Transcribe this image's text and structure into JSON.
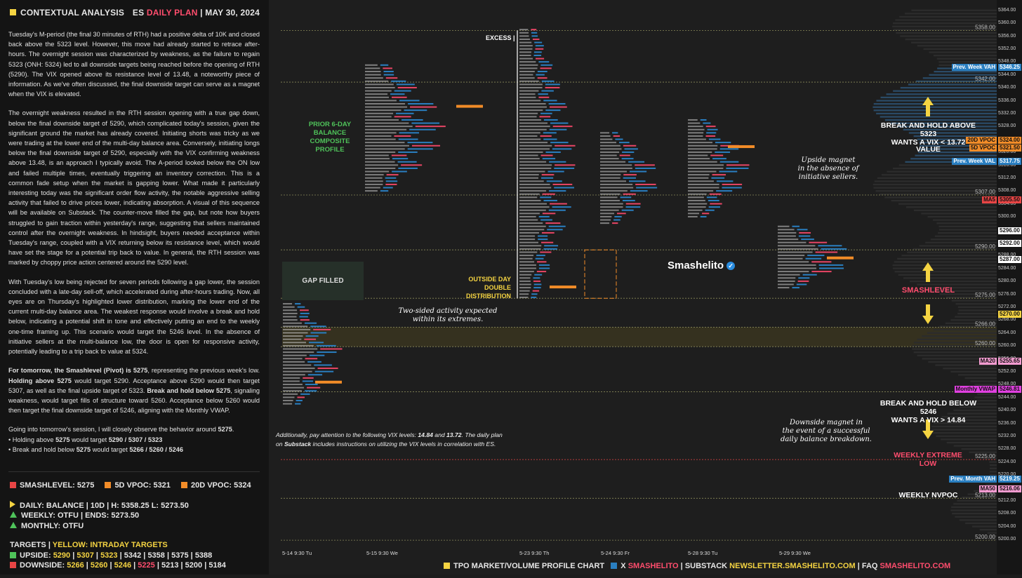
{
  "header": {
    "title": "CONTEXTUAL ANALYSIS",
    "symbol": "ES",
    "plan": "DAILY PLAN",
    "date": "MAY 30, 2024"
  },
  "paragraphs": [
    "Tuesday's M-period (the final 30 minutes of RTH) had a positive delta of 10K and closed back above the 5323 level. However, this move had already started to retrace after-hours. The overnight session was characterized by weakness, as the failure to regain 5323 (ONH: 5324) led to all downside targets being reached before the opening of RTH (5290). The VIX opened above its resistance level of 13.48, a noteworthy piece of information. As we've often discussed, the final downside target can serve as a magnet when the VIX is elevated.",
    "The overnight weakness resulted in the RTH session opening with a true gap down, below the final downside target of 5290, which complicated today's session, given the significant ground the market has already covered. Initiating shorts was tricky as we were trading at the lower end of the multi-day balance area. Conversely, initiating longs below the final downside target of 5290, especially with the VIX confirming weakness above 13.48, is an approach I typically avoid. The A-period looked below the ON low and failed multiple times, eventually triggering an inventory correction. This is a common fade setup when the market is gapping lower. What made it particularly interesting today was the significant order flow activity, the notable aggressive selling activity that failed to drive prices lower, indicating absorption. A visual of this sequence will be available on Substack. The counter-move filled the gap, but note how buyers struggled to gain traction within yesterday's range, suggesting that sellers maintained control after the overnight weakness. In hindsight, buyers needed acceptance within Tuesday's range, coupled with a VIX returning below its resistance level, which would have set the stage for a potential trip back to value. In general, the RTH session was marked by choppy price action centered around the 5290 level.",
    "With Tuesday's low being rejected for seven periods following a gap lower, the session concluded with a late-day sell-off, which accelerated during after-hours trading. Now, all eyes are on Thursday's highlighted lower distribution, marking the lower end of the current multi-day balance area. The weakest response would involve a break and hold below, indicating a potential shift in tone and effectively putting an end to the weekly one-time framing up. This scenario would target the 5246 level. In the absence of initiative sellers at the multi-balance low, the door is open for responsive activity, potentially leading to a trip back to value at 5324."
  ],
  "tomorrow": {
    "p1": "For tomorrow, the Smashlevel (Pivot) is 5275",
    "p2": ", representing the previous week's low. ",
    "p3": "Holding above 5275",
    "p4": " would target 5290. Acceptance above 5290 would then target 5307, as well as the final upside target of 5323. ",
    "p5": "Break and hold below 5275",
    "p6": ", signaling weakness, would target fills of structure toward 5260. Acceptance below 5260 would then target the final downside target of 5246, aligning with the Monthly VWAP."
  },
  "closing": {
    "intro": "Going into tomorrow's session, I will closely observe the behavior around ",
    "level": "5275",
    "end": ".",
    "b1a": "• Holding above ",
    "b1b": "5275",
    "b1c": " would target ",
    "b1d": "5290 / 5307 / 5323",
    "b2a": "• Break and hold below ",
    "b2b": "5275",
    "b2c": " would target ",
    "b2d": "5266 / 5260 / 5246"
  },
  "legend": {
    "smashlevel": "SMASHLEVEL: 5275",
    "vpoc5": "5D VPOC: 5321",
    "vpoc20": "20D VPOC: 5324",
    "colors": {
      "smash": "#e84545",
      "vpoc5": "#f28c28",
      "vpoc20": "#f28c28"
    }
  },
  "stats": {
    "daily": "DAILY: BALANCE  |  10D  |  H: 5358.25 L: 5273.50",
    "weekly": "WEEKLY: OTFU  |  ENDS: 5273.50",
    "monthly": "MONTHLY: OTFU"
  },
  "targets": {
    "label": "TARGETS",
    "sep": "|",
    "intraday": "YELLOW: INTRADAY TARGETS",
    "up_label": "UPSIDE: ",
    "up_yellow": [
      "5290",
      "5307",
      "5323"
    ],
    "up_rest": [
      "5342",
      "5358",
      "5375",
      "5388"
    ],
    "down_label": "DOWNSIDE: ",
    "down_yellow": [
      "5266",
      "5260",
      "5246"
    ],
    "down_pink": "5225",
    "down_rest": [
      "5213",
      "5200",
      "5184"
    ]
  },
  "chart_data": {
    "type": "table",
    "title": "TPO MARKET/VOLUME PROFILE CHART",
    "x_ticks": [
      "5-14  9:30 Tu",
      "5-15  9:30 We",
      "5-23  9:30 Th",
      "5-24  9:30 Fr",
      "5-28  9:30 Tu",
      "5-29  9:30 We"
    ],
    "y_ticks": [
      5364,
      5360,
      5356,
      5352,
      5348,
      5344,
      5340,
      5336,
      5332,
      5328,
      5324,
      5320,
      5316,
      5312,
      5308,
      5304,
      5300,
      5296,
      5292,
      5288,
      5284,
      5280,
      5276,
      5272,
      5268,
      5264,
      5260,
      5256,
      5252,
      5248,
      5244,
      5240,
      5236,
      5232,
      5228,
      5224,
      5220,
      5216,
      5212,
      5208,
      5204,
      5200
    ],
    "y_labels": [
      "5364.00",
      "5360.00",
      "5356.00",
      "5352.00",
      "5348.00",
      "5344.00",
      "5340.00",
      "5336.00",
      "5332.00",
      "5328.00",
      "5324.00",
      "5320.00",
      "5316.00",
      "5312.00",
      "5308.00",
      "5304.00",
      "5300.00",
      "5296.00",
      "5292.00",
      "5288.00",
      "5284.00",
      "5280.00",
      "5276.00",
      "5272.00",
      "5268.00",
      "5264.00",
      "5260.00",
      "5256.00",
      "5252.00",
      "5248.00",
      "5244.00",
      "5240.00",
      "5236.00",
      "5232.00",
      "5228.00",
      "5224.00",
      "5220.00",
      "5216.00",
      "5212.00",
      "5208.00",
      "5204.00",
      "5200.00"
    ],
    "ylim": [
      5198.5,
      5365.5
    ],
    "levels": [
      {
        "value": 5358,
        "label": "5358.00"
      },
      {
        "value": 5342,
        "label": "5342.00"
      },
      {
        "value": 5307,
        "label": "5307.00"
      },
      {
        "value": 5290,
        "label": "5290.00"
      },
      {
        "value": 5275,
        "label": "5275.00"
      },
      {
        "value": 5266,
        "label": "5266.00"
      },
      {
        "value": 5260,
        "label": "5260.00"
      },
      {
        "value": 5246,
        "label": "5246.00"
      },
      {
        "value": 5225,
        "label": "5225.00"
      },
      {
        "value": 5213,
        "label": "5213.00"
      },
      {
        "value": 5200,
        "label": "5200.00"
      }
    ],
    "price_labels": [
      {
        "value": 5346.5,
        "text": "Prev. Week VAH",
        "price": "5346.25",
        "color": "#2a7fc1"
      },
      {
        "value": 5324,
        "text": "20D VPOC",
        "price": "5324.00",
        "color": "#f28c28"
      },
      {
        "value": 5321.5,
        "text": "5D VPOC",
        "price": "5321.50",
        "color": "#f28c28"
      },
      {
        "value": 5317.5,
        "text": "Prev. Week VAL",
        "price": "5317.75",
        "color": "#2a7fc1"
      },
      {
        "value": 5305.5,
        "text": "MA5",
        "price": "5305.50",
        "color": "#e84545"
      },
      {
        "value": 5296,
        "text": "",
        "price": "5296.00",
        "color": "#ffffff"
      },
      {
        "value": 5292,
        "text": "",
        "price": "5292.00",
        "color": "#ffffff"
      },
      {
        "value": 5287,
        "text": "",
        "price": "5287.00",
        "color": "#ffffff"
      },
      {
        "value": 5270,
        "text": "",
        "price": "5270.00",
        "color": "#f5d442"
      },
      {
        "value": 5255.5,
        "text": "MA20",
        "price": "5255.65",
        "color": "#f39bd0"
      },
      {
        "value": 5246.8,
        "text": "Monthly VWAP",
        "price": "5246.81",
        "color": "#e040e0"
      },
      {
        "value": 5219,
        "text": "Prev. Month VAH",
        "price": "5219.25",
        "color": "#2a7fc1"
      },
      {
        "value": 5216,
        "text": "MA50",
        "price": "5216.06",
        "color": "#f39bd0"
      }
    ],
    "annotations": {
      "excess": "EXCESS |",
      "prior_balance": "PRIOR 6-DAY BALANCE\nCOMPOSITE PROFILE",
      "gap_filled": "GAP FILLED",
      "outside_day": "OUTSIDE DAY\nDOUBLE DISTRIBUTION",
      "two_sided": "Two-sided activity expected\nwithin its extremes.",
      "brand": "Smashelito",
      "upside_magnet": "Upside magnet\nin the absence of\ninitiative sellers.",
      "downside_magnet": "Downside magnet in\nthe event of a successful\ndaily balance breakdown.",
      "break_above": "BREAK AND HOLD ABOVE 5323\nWANTS A VIX < 13.72",
      "value": "VALUE",
      "smashlevel": "SMASHLEVEL",
      "break_below": "BREAK AND HOLD BELOW 5246\nWANTS A VIX > 14.84",
      "weekly_extreme": "WEEKLY EXTREME LOW",
      "weekly_nvpoc": "WEEKLY NVPOC",
      "vix_note_1": "Additionally, pay attention to the following VIX levels: ",
      "vix_a": "14.84",
      "vix_and": " and ",
      "vix_b": "13.72",
      "vix_note_2": ". The daily plan",
      "vix_note_3": "on ",
      "vix_sub": "Substack",
      "vix_note_4": " includes instructions on utilizing the VIX levels in correlation with ES."
    }
  },
  "footer": {
    "chart": "TPO MARKET/VOLUME PROFILE CHART",
    "x": "X",
    "x_handle": "SMASHELITO",
    "substack": "SUBSTACK",
    "substack_url": "NEWSLETTER.SMASHELITO.COM",
    "faq": "FAQ",
    "faq_url": "SMASHELITO.COM",
    "colors": {
      "yellow": "#f5d442",
      "blue": "#2a7fc1"
    }
  }
}
